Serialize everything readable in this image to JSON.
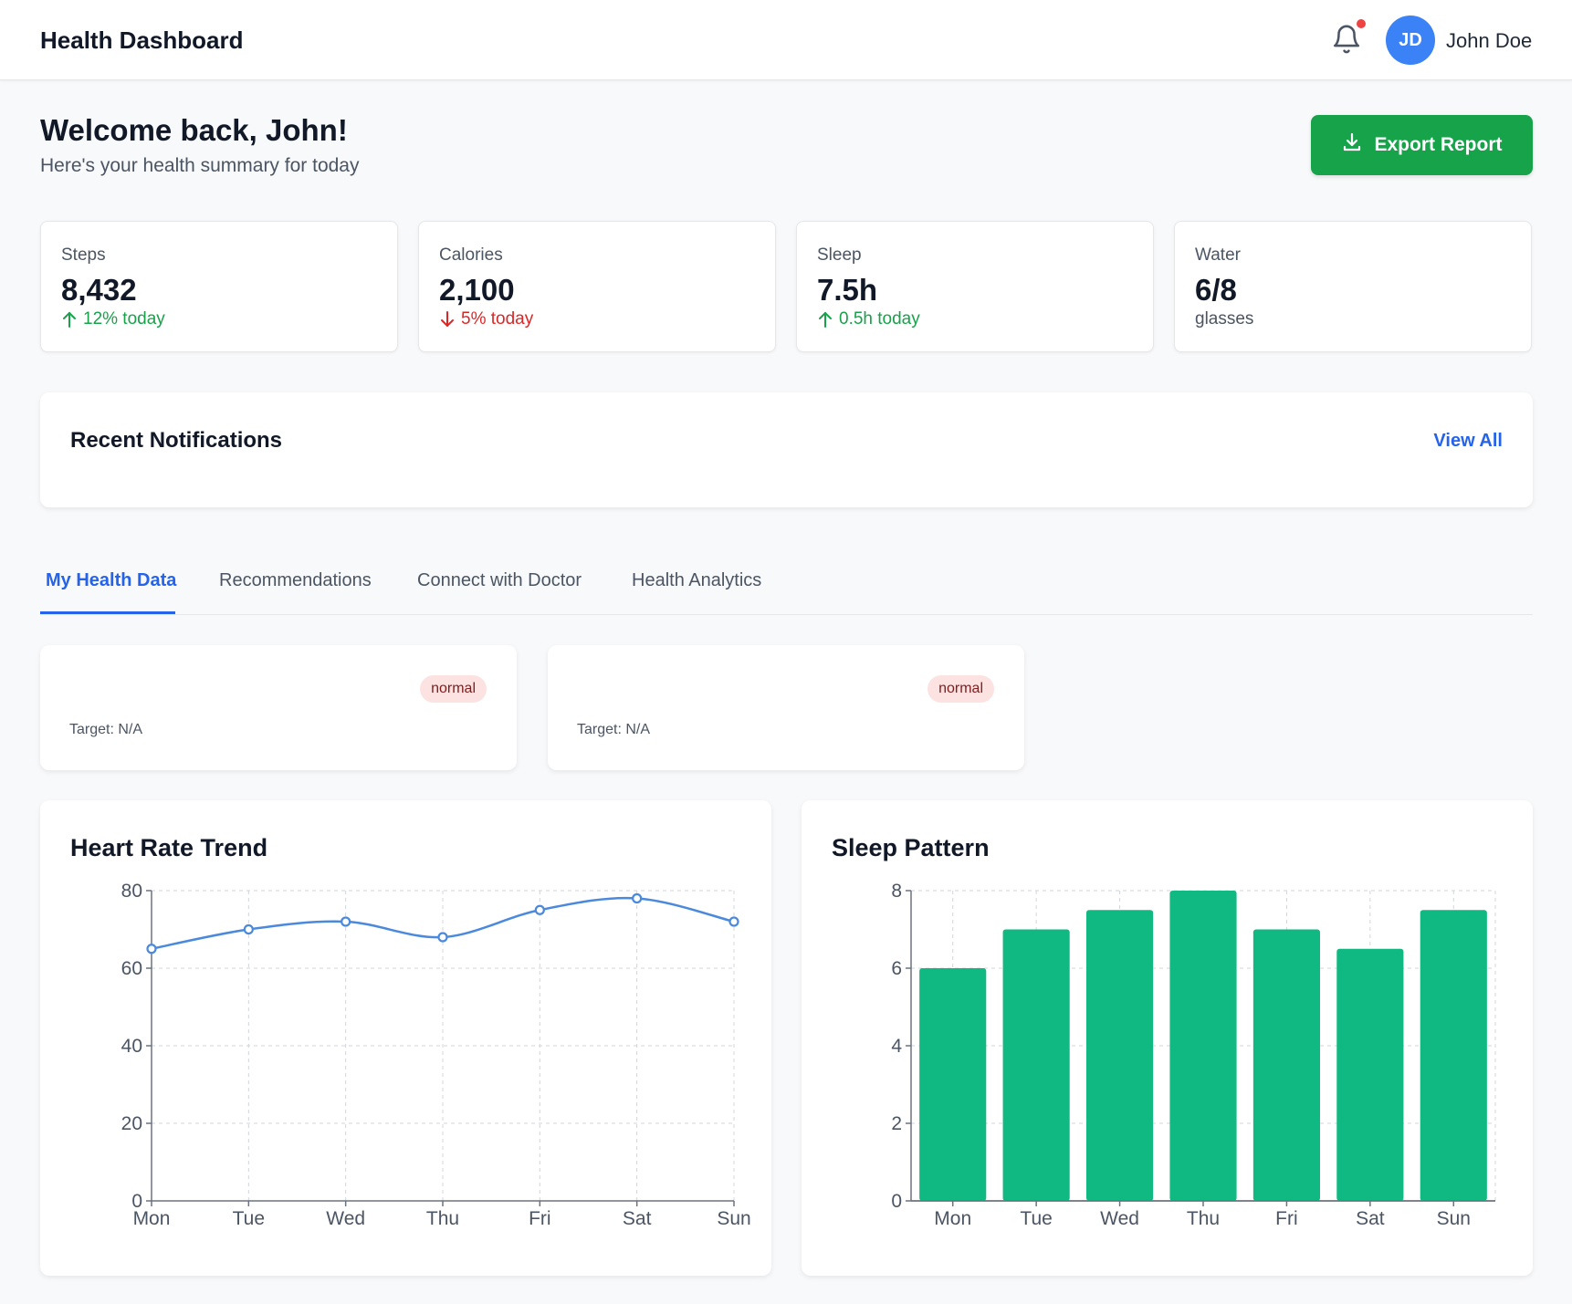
{
  "header": {
    "app_title": "Health Dashboard",
    "icons": {
      "notifications": "bell-icon"
    },
    "user": {
      "initials": "JD",
      "name": "John Doe"
    }
  },
  "welcome": {
    "title": "Welcome back, John!",
    "subtitle": "Here's your health summary for today",
    "export_label": "Export Report",
    "export_icon": "download-icon"
  },
  "stats": [
    {
      "label": "Steps",
      "value": "8,432",
      "change": "12% today",
      "direction": "up"
    },
    {
      "label": "Calories",
      "value": "2,100",
      "change": "5% today",
      "direction": "down"
    },
    {
      "label": "Sleep",
      "value": "7.5h",
      "change": "0.5h today",
      "direction": "up"
    },
    {
      "label": "Water",
      "value": "6/8",
      "change": "glasses",
      "direction": "none"
    }
  ],
  "notifications": {
    "title": "Recent Notifications",
    "view_all": "View All"
  },
  "tabs": [
    {
      "label": "My Health Data",
      "active": true
    },
    {
      "label": "Recommendations",
      "active": false
    },
    {
      "label": "Connect with Doctor",
      "active": false
    },
    {
      "label": "Health Analytics",
      "active": false
    }
  ],
  "metrics": [
    {
      "status": "normal",
      "target": "Target: N/A"
    },
    {
      "status": "normal",
      "target": "Target: N/A"
    }
  ],
  "colors": {
    "accent": "#2563eb",
    "success": "#16a34a",
    "danger": "#dc2626",
    "line": "#4a89dc",
    "bar": "#10b981"
  },
  "chart_data": [
    {
      "type": "line",
      "title": "Heart Rate Trend",
      "categories": [
        "Mon",
        "Tue",
        "Wed",
        "Thu",
        "Fri",
        "Sat",
        "Sun"
      ],
      "values": [
        65,
        70,
        72,
        68,
        75,
        78,
        72
      ],
      "ylim": [
        0,
        80
      ],
      "yticks": [
        0,
        20,
        40,
        60,
        80
      ],
      "grid": true
    },
    {
      "type": "bar",
      "title": "Sleep Pattern",
      "categories": [
        "Mon",
        "Tue",
        "Wed",
        "Thu",
        "Fri",
        "Sat",
        "Sun"
      ],
      "values": [
        6,
        7,
        7.5,
        8,
        7,
        6.5,
        7.5
      ],
      "ylim": [
        0,
        8
      ],
      "yticks": [
        0,
        2,
        4,
        6,
        8
      ],
      "grid": true
    }
  ]
}
